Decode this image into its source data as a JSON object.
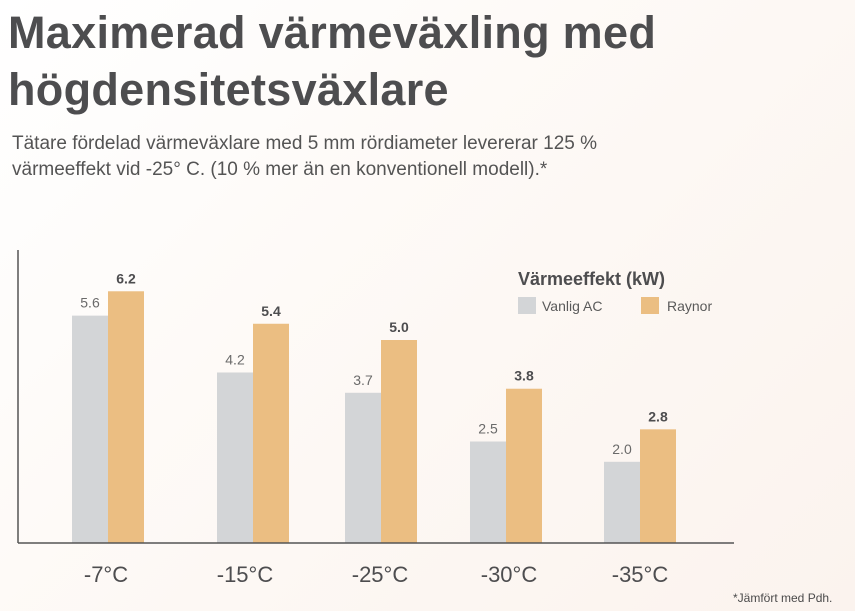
{
  "heading": {
    "title_line1": "Maximerad värmeväxling med",
    "title_line2": "högdensitetsväxlare",
    "subtitle_line1": "Tätare fördelad värmeväxlare med 5 mm rördiameter levererar 125 %",
    "subtitle_line2": "värmeeffekt vid -25° C. (10 % mer än en konventionell modell).*"
  },
  "footnote": "*Jämfört med Pdh.",
  "chart_data": {
    "type": "bar",
    "title": "Maximerad värmeväxling med högdensitetsväxlare",
    "categories": [
      "-7°C",
      "-15°C",
      "-25°C",
      "-30°C",
      "-35°C"
    ],
    "series": [
      {
        "name": "Vanlig AC",
        "values": [
          5.6,
          4.2,
          3.7,
          2.5,
          2.0
        ],
        "labels": [
          "5.6",
          "4.2",
          "3.7",
          "2.5",
          "2.0"
        ],
        "color": "#d3d5d7"
      },
      {
        "name": "Raynor",
        "values": [
          6.2,
          5.4,
          5.0,
          3.8,
          2.8
        ],
        "labels": [
          "6.2",
          "5.4",
          "5.0",
          "3.8",
          "2.8"
        ],
        "color": "#ebbe82"
      }
    ],
    "legend_title": "Värmeeffekt (kW)",
    "legend_position": "top-right",
    "xlabel": "",
    "ylabel": "",
    "ylim": [
      0,
      6.4
    ],
    "grid": false
  }
}
